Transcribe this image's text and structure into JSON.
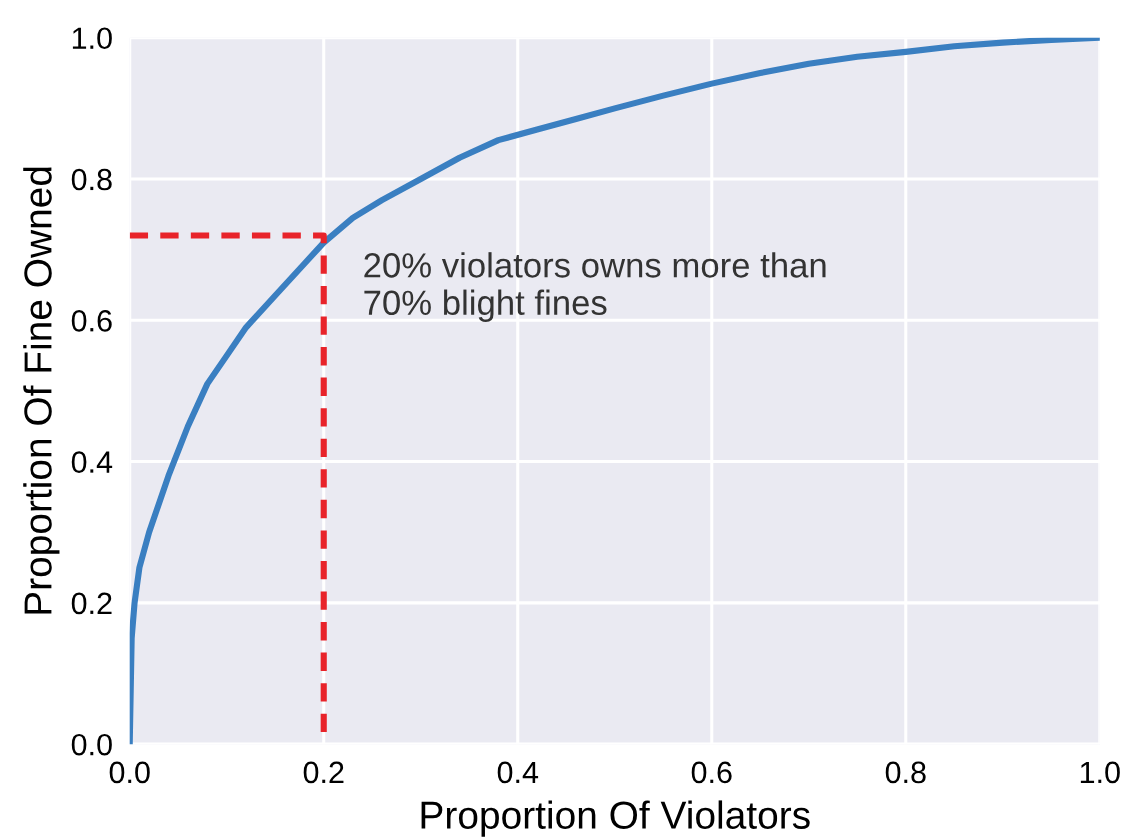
{
  "chart_data": {
    "type": "line",
    "xlabel": "Proportion Of Violators",
    "ylabel": "Proportion Of Fine Owned",
    "xlim": [
      0,
      1
    ],
    "ylim": [
      0,
      1
    ],
    "xticks": [
      {
        "value": 0,
        "label": "0.0"
      },
      0.2,
      0.4,
      0.6,
      0.8,
      {
        "value": 1,
        "label": "1.0"
      }
    ],
    "yticks": [
      {
        "value": 0,
        "label": "0.0"
      },
      0.2,
      0.4,
      0.6,
      0.8,
      {
        "value": 1,
        "label": "1.0"
      }
    ],
    "grid": true,
    "series": [
      {
        "color": "#3a7fc1",
        "line_style": "solid",
        "x": [
          0,
          0.002,
          0.005,
          0.01,
          0.02,
          0.03,
          0.04,
          0.06,
          0.08,
          0.1,
          0.12,
          0.15,
          0.18,
          0.2,
          0.23,
          0.26,
          0.3,
          0.34,
          0.38,
          0.42,
          0.46,
          0.5,
          0.55,
          0.6,
          0.65,
          0.7,
          0.75,
          0.8,
          0.85,
          0.9,
          0.95,
          1.0
        ],
        "values": [
          0,
          0.15,
          0.2,
          0.25,
          0.3,
          0.34,
          0.38,
          0.45,
          0.51,
          0.55,
          0.59,
          0.635,
          0.68,
          0.71,
          0.745,
          0.77,
          0.8,
          0.83,
          0.855,
          0.87,
          0.885,
          0.9,
          0.918,
          0.935,
          0.95,
          0.963,
          0.973,
          0.98,
          0.988,
          0.993,
          0.997,
          1.0
        ]
      },
      {
        "color": "#e8232a",
        "line_style": "dashed",
        "x": [
          0,
          0.2,
          0.2
        ],
        "values": [
          0.72,
          0.72,
          0
        ]
      }
    ],
    "annotations": [
      {
        "text": "20% violators owns more than\n70% blight fines",
        "x": 0.2,
        "y": 0.72
      }
    ]
  }
}
